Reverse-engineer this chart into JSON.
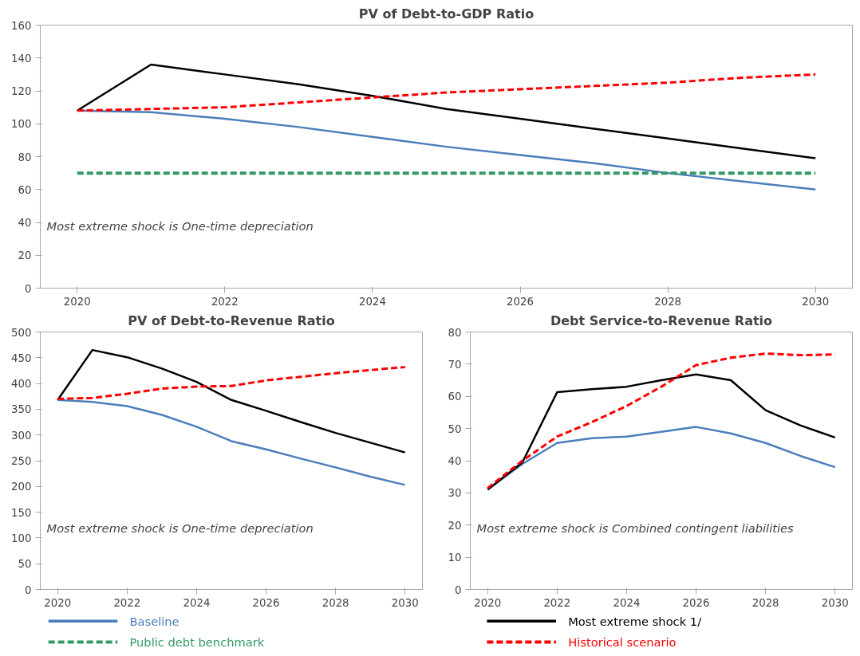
{
  "chart_data": [
    {
      "type": "line",
      "title": "PV of Debt-to-GDP Ratio",
      "x": [
        2020,
        2021,
        2022,
        2023,
        2024,
        2025,
        2026,
        2027,
        2028,
        2029,
        2030
      ],
      "xlim": [
        2019.5,
        2030.5
      ],
      "xticks": [
        2020,
        2022,
        2024,
        2026,
        2028,
        2030
      ],
      "ylim": [
        0,
        160
      ],
      "yticks": [
        0,
        20,
        40,
        60,
        80,
        100,
        120,
        140,
        160
      ],
      "grid": false,
      "legend": "bottom",
      "annotations": [
        "Most extreme shock is One-time depreciation"
      ],
      "series": [
        {
          "name": "Baseline",
          "color": "#4a7ebb",
          "line_style": "solid",
          "values": [
            108,
            107,
            103,
            98,
            92,
            86,
            81,
            76,
            70,
            65,
            60
          ]
        },
        {
          "name": "Public debt benchmark",
          "color": "#339966",
          "line_style": "dashed",
          "values": [
            70,
            70,
            70,
            70,
            70,
            70,
            70,
            70,
            70,
            70,
            70
          ]
        },
        {
          "name": "Most extreme shock 1/",
          "color": "#000000",
          "line_style": "solid",
          "values": [
            108,
            136,
            130,
            124,
            117,
            109,
            103,
            97,
            91,
            85,
            79
          ]
        },
        {
          "name": "Historical scenario",
          "color": "#ff0000",
          "line_style": "dashed",
          "values": [
            108,
            109,
            110,
            113,
            116,
            119,
            121,
            123,
            125,
            128,
            130
          ]
        }
      ]
    },
    {
      "type": "line",
      "title": "PV of Debt-to-Revenue Ratio",
      "x": [
        2020,
        2021,
        2022,
        2023,
        2024,
        2025,
        2026,
        2027,
        2028,
        2029,
        2030
      ],
      "xlim": [
        2019.5,
        2030.5
      ],
      "xticks": [
        2020,
        2022,
        2024,
        2026,
        2028,
        2030
      ],
      "ylim": [
        0,
        500
      ],
      "yticks": [
        0,
        50,
        100,
        150,
        200,
        250,
        300,
        350,
        400,
        450,
        500
      ],
      "grid": false,
      "annotations": [
        "Most extreme shock is One-time depreciation"
      ],
      "series": [
        {
          "color": "#4a7ebb",
          "line_style": "solid",
          "values": [
            368,
            364,
            356,
            339,
            316,
            288,
            272,
            254,
            237,
            219,
            203
          ]
        },
        {
          "color": "#000000",
          "line_style": "solid",
          "values": [
            368,
            465,
            451,
            429,
            403,
            368,
            347,
            325,
            304,
            285,
            266
          ]
        },
        {
          "color": "#ff0000",
          "line_style": "dashed",
          "values": [
            370,
            372,
            380,
            390,
            394,
            395,
            406,
            413,
            420,
            426,
            432
          ]
        }
      ]
    },
    {
      "type": "line",
      "title": "Debt Service-to-Revenue Ratio",
      "x": [
        2020,
        2021,
        2022,
        2023,
        2024,
        2025,
        2026,
        2027,
        2028,
        2029,
        2030
      ],
      "xlim": [
        2019.5,
        2030.5
      ],
      "xticks": [
        2020,
        2022,
        2024,
        2026,
        2028,
        2030
      ],
      "ylim": [
        0,
        80
      ],
      "yticks": [
        0,
        10,
        20,
        30,
        40,
        50,
        60,
        70,
        80
      ],
      "grid": false,
      "annotations": [
        "Most extreme shock is Combined contingent liabilities"
      ],
      "series": [
        {
          "color": "#4a7ebb",
          "line_style": "solid",
          "values": [
            31,
            39,
            45.5,
            47,
            47.5,
            49,
            50.5,
            48.5,
            45.5,
            41.5,
            38
          ]
        },
        {
          "color": "#000000",
          "line_style": "solid",
          "values": [
            31,
            39.5,
            61.3,
            62.2,
            63,
            65,
            66.8,
            65,
            55.7,
            51,
            47.2
          ]
        },
        {
          "color": "#ff0000",
          "line_style": "dashed",
          "values": [
            31.5,
            40,
            47.5,
            52,
            57,
            63,
            69.7,
            72,
            73.3,
            72.8,
            73
          ]
        }
      ]
    }
  ]
}
